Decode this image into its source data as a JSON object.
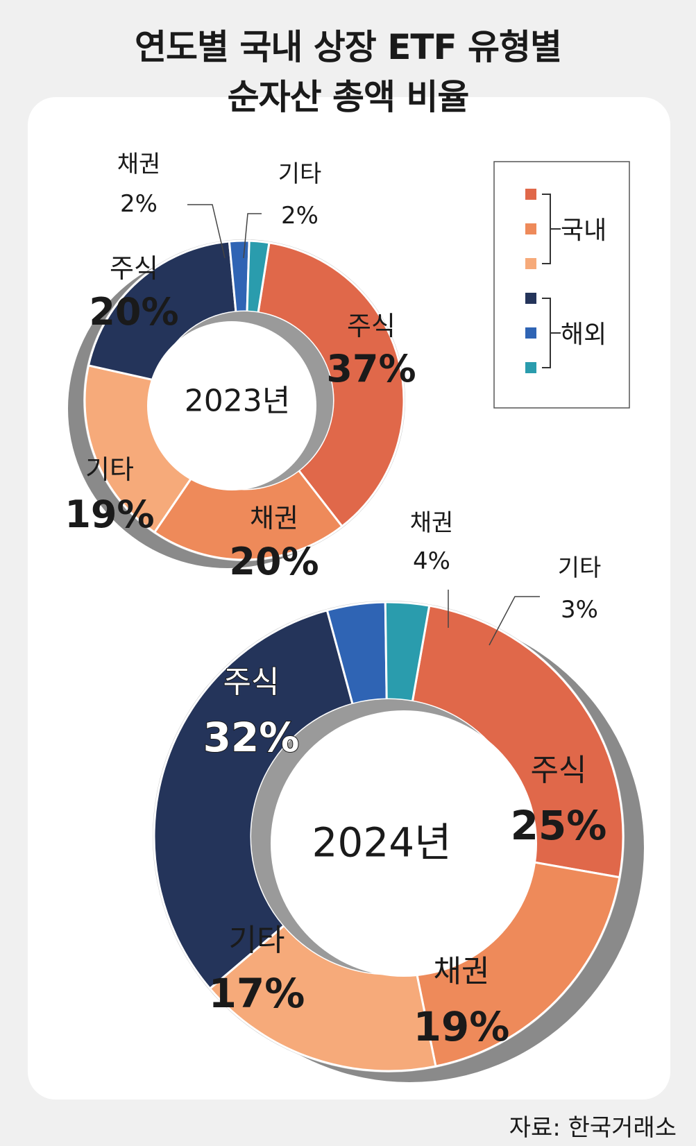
{
  "title": {
    "line1": "연도별 국내 상장 ETF 유형별",
    "line2": "순자산 총액 비율"
  },
  "source": "자료: 한국거래소",
  "legend": {
    "domestic": "국내",
    "overseas": "해외"
  },
  "colors": {
    "domestic_stock": "#e0684a",
    "domestic_bond": "#ee8a5a",
    "domestic_other": "#f6aa7a",
    "overseas_stock": "#24345a",
    "overseas_bond": "#2f64b4",
    "overseas_other": "#2a9cad",
    "shadow": "#8a8a8a",
    "panel": "#ffffff"
  },
  "chart_data": [
    {
      "type": "pie",
      "title": "2023년",
      "series": [
        {
          "name": "국내 주식",
          "group": "국내",
          "label": "주식",
          "value": 37,
          "value_label": "37%",
          "color": "#e0684a"
        },
        {
          "name": "국내 채권",
          "group": "국내",
          "label": "채권",
          "value": 20,
          "value_label": "20%",
          "color": "#ee8a5a"
        },
        {
          "name": "국내 기타",
          "group": "국내",
          "label": "기타",
          "value": 19,
          "value_label": "19%",
          "color": "#f6aa7a"
        },
        {
          "name": "해외 주식",
          "group": "해외",
          "label": "주식",
          "value": 20,
          "value_label": "20%",
          "color": "#24345a"
        },
        {
          "name": "해외 채권",
          "group": "해외",
          "label": "채권",
          "value": 2,
          "value_label": "2%",
          "color": "#2f64b4"
        },
        {
          "name": "해외 기타",
          "group": "해외",
          "label": "기타",
          "value": 2,
          "value_label": "2%",
          "color": "#2a9cad"
        }
      ]
    },
    {
      "type": "pie",
      "title": "2024년",
      "series": [
        {
          "name": "국내 주식",
          "group": "국내",
          "label": "주식",
          "value": 25,
          "value_label": "25%",
          "color": "#e0684a"
        },
        {
          "name": "국내 채권",
          "group": "국내",
          "label": "채권",
          "value": 19,
          "value_label": "19%",
          "color": "#ee8a5a"
        },
        {
          "name": "국내 기타",
          "group": "국내",
          "label": "기타",
          "value": 17,
          "value_label": "17%",
          "color": "#f6aa7a"
        },
        {
          "name": "해외 주식",
          "group": "해외",
          "label": "주식",
          "value": 32,
          "value_label": "32%",
          "color": "#24345a"
        },
        {
          "name": "해외 채권",
          "group": "해외",
          "label": "채권",
          "value": 4,
          "value_label": "4%",
          "color": "#2f64b4"
        },
        {
          "name": "해외 기타",
          "group": "해외",
          "label": "기타",
          "value": 3,
          "value_label": "3%",
          "color": "#2a9cad"
        }
      ]
    }
  ]
}
